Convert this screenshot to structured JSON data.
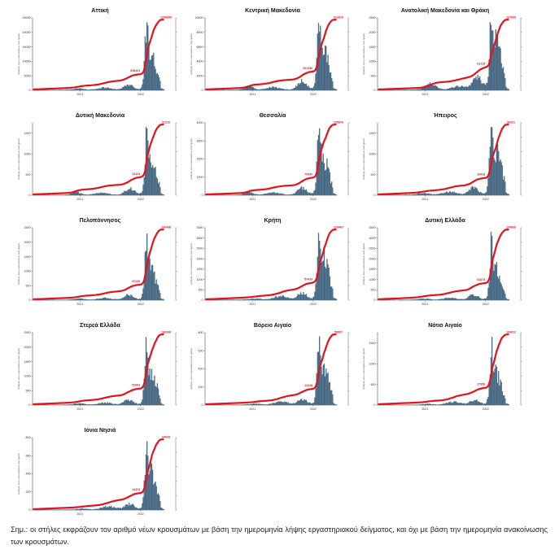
{
  "y_axis_label": "Αριθμός νέων κρουσμάτων ανά ημέρα",
  "x_tick_labels": [
    "2021",
    "2022"
  ],
  "colors": {
    "bars": "#4a6b85",
    "cumulative_line": "#e3121b",
    "axis": "#333333"
  },
  "note": "Σημ.: οι στήλες εκφράζουν τον αριθμό νέων κρουσμάτων με βάση την ημερομηνία λήψης εργαστηριακού δείγματος, και όχι με βάση την ημερομηνία ανακοίνωσης των κρουσμάτων.",
  "chart_data": [
    {
      "type": "bar",
      "title": "Αττική",
      "yticks": [
        0,
        5000,
        10000,
        15000,
        20000,
        25000
      ],
      "ymax": 25000,
      "peak": 23500,
      "profile": "mid",
      "final_label": "1298889",
      "mid_label": "548431"
    },
    {
      "type": "bar",
      "title": "Κεντρική Μακεδονία",
      "yticks": [
        0,
        2000,
        4000,
        6000,
        8000,
        10000
      ],
      "ymax": 10000,
      "peak": 9300,
      "profile": "north",
      "final_label": "613876",
      "mid_label": "201456"
    },
    {
      "type": "bar",
      "title": "Ανατολική Μακεδονία και Θράκη",
      "yticks": [
        0,
        500,
        1000,
        1500,
        2000,
        2500
      ],
      "ymax": 2500,
      "peak": 2350,
      "profile": "east",
      "final_label": "167839",
      "mid_label": "61215"
    },
    {
      "type": "bar",
      "title": "Δυτική Μακεδονία",
      "yticks": [
        0,
        500,
        1000,
        1500
      ],
      "ymax": 1750,
      "peak": 1650,
      "profile": "north",
      "final_label": "91216",
      "mid_label": "31124"
    },
    {
      "type": "bar",
      "title": "Θεσσαλία",
      "yticks": [
        0,
        1000,
        2000,
        3000,
        4000
      ],
      "ymax": 4000,
      "peak": 3700,
      "profile": "north",
      "final_label": "235876",
      "mid_label": "79342"
    },
    {
      "type": "bar",
      "title": "Ήπειρος",
      "yticks": [
        0,
        500,
        1000,
        1500
      ],
      "ymax": 1750,
      "peak": 1650,
      "profile": "mid",
      "final_label": "96321",
      "mid_label": "26918"
    },
    {
      "type": "bar",
      "title": "Πελοπόννησος",
      "yticks": [
        0,
        500,
        1000,
        1500,
        2000,
        2500
      ],
      "ymax": 2500,
      "peak": 2300,
      "profile": "mid",
      "final_label": "166438",
      "mid_label": "47230"
    },
    {
      "type": "bar",
      "title": "Κρήτη",
      "yticks": [
        0,
        500,
        1000,
        1500,
        2000,
        2500,
        3000,
        3500
      ],
      "ymax": 3500,
      "peak": 3250,
      "profile": "island",
      "final_label": "226467",
      "mid_label": "57410"
    },
    {
      "type": "bar",
      "title": "Δυτική Ελλάδα",
      "yticks": [
        0,
        500,
        1000,
        1500,
        2000,
        2500,
        3000,
        3500
      ],
      "ymax": 3500,
      "peak": 3300,
      "profile": "mid",
      "final_label": "194839",
      "mid_label": "61873"
    },
    {
      "type": "bar",
      "title": "Στερεά Ελλάδα",
      "yticks": [
        0,
        500,
        1000,
        1500,
        2000,
        2500
      ],
      "ymax": 2500,
      "peak": 2350,
      "profile": "mid",
      "final_label": "166338",
      "mid_label": "52941"
    },
    {
      "type": "bar",
      "title": "Βόρειο Αιγαίο",
      "yticks": [
        0,
        200,
        400,
        600,
        800
      ],
      "ymax": 800,
      "peak": 760,
      "profile": "island",
      "final_label": "59897",
      "mid_label": "13128"
    },
    {
      "type": "bar",
      "title": "Νότιο Αιγαίο",
      "yticks": [
        0,
        500,
        1000,
        1500
      ],
      "ymax": 1750,
      "peak": 1650,
      "profile": "island",
      "final_label": "104012",
      "mid_label": "27356"
    },
    {
      "type": "bar",
      "title": "Ιόνια Νησιά",
      "yticks": [
        0,
        200,
        400,
        600,
        800
      ],
      "ymax": 800,
      "peak": 760,
      "profile": "island",
      "final_label": "64928",
      "mid_label": "14372"
    }
  ]
}
